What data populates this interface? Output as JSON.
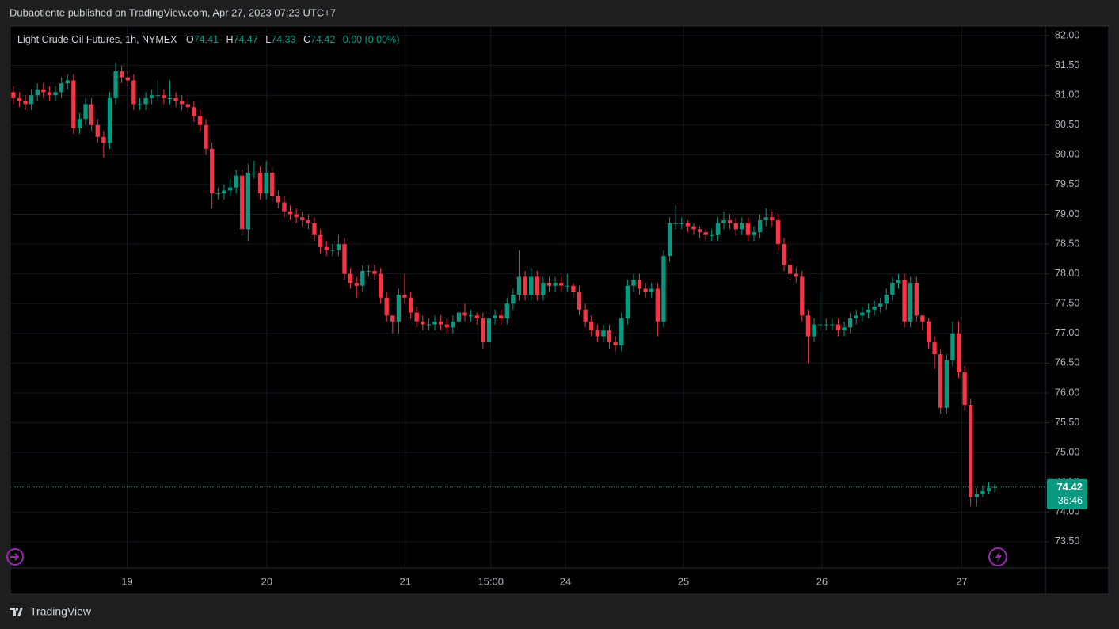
{
  "header": {
    "publisher_line": "Dubaotiente published on TradingView.com, Apr 27, 2023 07:23 UTC+7"
  },
  "chart_data": {
    "type": "candlestick",
    "title": "Light Crude Oil Futures, 1h, NYMEX",
    "ohlc_labels": [
      "O",
      "H",
      "L",
      "C"
    ],
    "change": "0.00 (0.00%)",
    "countdown": "36:46",
    "up_color": "#089981",
    "down_color": "#f23645",
    "grid": true,
    "open": [
      81.05,
      80.95,
      80.9,
      80.85,
      81.0,
      81.1,
      81.05,
      81.0,
      81.05,
      81.2,
      81.25,
      80.45,
      80.6,
      80.85,
      80.5,
      80.3,
      80.2,
      80.95,
      81.4,
      81.3,
      81.25,
      80.85,
      80.85,
      80.95,
      81.0,
      81.0,
      80.95,
      80.95,
      80.9,
      80.85,
      80.8,
      80.65,
      80.5,
      80.1,
      79.35,
      79.35,
      79.4,
      79.45,
      79.65,
      78.75,
      79.7,
      79.7,
      79.35,
      79.7,
      79.3,
      79.2,
      79.05,
      79.0,
      78.95,
      78.9,
      78.85,
      78.65,
      78.45,
      78.4,
      78.4,
      78.5,
      78.0,
      77.85,
      77.8,
      78.05,
      78.05,
      78.0,
      77.6,
      77.3,
      77.2,
      77.65,
      77.6,
      77.35,
      77.2,
      77.15,
      77.15,
      77.2,
      77.15,
      77.1,
      77.2,
      77.35,
      77.3,
      77.3,
      77.25,
      76.85,
      77.25,
      77.3,
      77.25,
      77.5,
      77.65,
      77.95,
      77.65,
      77.95,
      77.65,
      77.85,
      77.8,
      77.85,
      77.8,
      77.8,
      77.7,
      77.4,
      77.2,
      77.05,
      76.95,
      77.05,
      76.85,
      76.8,
      77.25,
      77.8,
      77.9,
      77.75,
      77.7,
      77.75,
      77.2,
      78.3,
      78.85,
      78.85,
      78.85,
      78.8,
      78.75,
      78.7,
      78.65,
      78.65,
      78.85,
      78.9,
      78.85,
      78.75,
      78.85,
      78.65,
      78.7,
      78.9,
      78.95,
      78.9,
      78.5,
      78.15,
      78.0,
      77.95,
      77.3,
      76.95,
      77.15,
      77.15,
      77.15,
      77.15,
      77.05,
      77.1,
      77.25,
      77.3,
      77.35,
      77.4,
      77.45,
      77.5,
      77.65,
      77.85,
      77.9,
      77.2,
      77.85,
      77.3,
      77.2,
      76.85,
      76.65,
      75.75,
      76.55,
      77.0,
      76.35,
      75.8,
      74.25,
      74.3,
      74.35,
      74.41
    ],
    "high": [
      81.15,
      81.05,
      81.0,
      81.1,
      81.2,
      81.2,
      81.15,
      81.15,
      81.3,
      81.35,
      81.35,
      80.7,
      80.95,
      80.95,
      80.6,
      80.4,
      81.05,
      81.55,
      81.5,
      81.4,
      81.35,
      80.95,
      81.05,
      81.1,
      81.25,
      81.1,
      81.25,
      81.05,
      81.0,
      80.95,
      80.9,
      80.75,
      80.6,
      80.2,
      79.45,
      79.5,
      79.6,
      79.75,
      79.75,
      79.85,
      79.9,
      79.8,
      79.9,
      79.8,
      79.4,
      79.3,
      79.15,
      79.1,
      79.05,
      79.0,
      78.95,
      78.75,
      78.55,
      78.5,
      78.65,
      78.6,
      78.1,
      77.95,
      78.15,
      78.15,
      78.15,
      78.1,
      77.7,
      77.3,
      77.75,
      78.0,
      77.7,
      77.45,
      77.3,
      77.25,
      77.3,
      77.3,
      77.25,
      77.3,
      77.45,
      77.5,
      77.4,
      77.35,
      77.35,
      77.35,
      77.4,
      77.4,
      77.6,
      77.75,
      78.4,
      78.05,
      78.1,
      78.05,
      77.95,
      77.95,
      77.95,
      77.95,
      78.0,
      77.85,
      77.8,
      77.5,
      77.3,
      77.15,
      77.15,
      77.15,
      76.95,
      77.35,
      77.9,
      78.0,
      78.0,
      77.85,
      77.85,
      77.85,
      78.4,
      78.95,
      79.15,
      78.95,
      78.9,
      78.85,
      78.8,
      78.75,
      78.75,
      78.95,
      79.05,
      79.0,
      78.95,
      78.95,
      78.95,
      78.8,
      79.0,
      79.1,
      79.05,
      79.0,
      78.6,
      78.25,
      78.1,
      78.05,
      77.4,
      77.25,
      77.7,
      77.25,
      77.25,
      77.25,
      77.2,
      77.35,
      77.4,
      77.45,
      77.5,
      77.55,
      77.6,
      77.75,
      77.95,
      78.0,
      78.0,
      77.95,
      77.95,
      77.3,
      77.25,
      76.95,
      76.75,
      76.65,
      77.2,
      77.2,
      76.45,
      75.9,
      74.4,
      74.45,
      74.5,
      74.47
    ],
    "low": [
      80.85,
      80.8,
      80.75,
      80.75,
      80.9,
      80.95,
      80.9,
      80.9,
      80.95,
      81.1,
      80.35,
      80.35,
      80.5,
      80.4,
      80.2,
      79.95,
      80.1,
      80.85,
      81.2,
      81.15,
      80.75,
      80.75,
      80.75,
      80.85,
      80.9,
      80.85,
      80.85,
      80.8,
      80.75,
      80.7,
      80.55,
      80.4,
      80.0,
      79.1,
      79.25,
      79.25,
      79.3,
      79.35,
      78.65,
      78.55,
      79.6,
      79.25,
      79.25,
      79.2,
      79.1,
      78.95,
      78.9,
      78.85,
      78.8,
      78.75,
      78.55,
      78.35,
      78.3,
      78.3,
      78.3,
      77.9,
      77.75,
      77.6,
      77.7,
      77.95,
      77.9,
      77.5,
      77.2,
      77.0,
      77.0,
      77.5,
      77.25,
      77.1,
      77.05,
      77.05,
      77.05,
      77.05,
      77.0,
      77.0,
      77.1,
      77.2,
      77.2,
      77.15,
      76.75,
      76.75,
      77.15,
      77.15,
      77.15,
      77.4,
      77.55,
      77.55,
      77.55,
      77.55,
      77.55,
      77.7,
      77.7,
      77.7,
      77.7,
      77.6,
      77.3,
      77.1,
      76.95,
      76.85,
      76.85,
      76.75,
      76.7,
      76.7,
      77.15,
      77.7,
      77.65,
      77.6,
      77.6,
      76.95,
      77.1,
      78.2,
      78.75,
      78.75,
      78.7,
      78.65,
      78.6,
      78.55,
      78.55,
      78.55,
      78.75,
      78.75,
      78.65,
      78.65,
      78.55,
      78.55,
      78.6,
      78.8,
      78.8,
      78.4,
      78.05,
      77.9,
      77.85,
      77.2,
      76.5,
      76.85,
      77.05,
      77.05,
      77.05,
      76.95,
      76.95,
      77.0,
      77.15,
      77.2,
      77.25,
      77.3,
      77.35,
      77.4,
      77.55,
      77.75,
      77.1,
      77.1,
      77.2,
      77.05,
      76.75,
      76.4,
      75.65,
      75.65,
      76.45,
      76.25,
      75.7,
      74.1,
      74.1,
      74.25,
      74.3,
      74.33
    ],
    "close": [
      80.95,
      80.9,
      80.85,
      81.0,
      81.1,
      81.05,
      81.0,
      81.05,
      81.2,
      81.25,
      80.45,
      80.6,
      80.85,
      80.5,
      80.3,
      80.2,
      80.95,
      81.4,
      81.3,
      81.25,
      80.85,
      80.85,
      80.95,
      81.0,
      81.0,
      80.95,
      80.95,
      80.9,
      80.85,
      80.8,
      80.65,
      80.5,
      80.1,
      79.35,
      79.35,
      79.4,
      79.45,
      79.65,
      78.75,
      79.7,
      79.7,
      79.35,
      79.7,
      79.3,
      79.2,
      79.05,
      79.0,
      78.95,
      78.9,
      78.85,
      78.65,
      78.45,
      78.4,
      78.4,
      78.5,
      78.0,
      77.85,
      77.8,
      78.05,
      78.05,
      78.0,
      77.6,
      77.3,
      77.2,
      77.65,
      77.6,
      77.35,
      77.2,
      77.15,
      77.15,
      77.2,
      77.15,
      77.1,
      77.2,
      77.35,
      77.3,
      77.3,
      77.25,
      76.85,
      77.25,
      77.3,
      77.25,
      77.5,
      77.65,
      77.95,
      77.65,
      77.95,
      77.65,
      77.85,
      77.8,
      77.85,
      77.8,
      77.8,
      77.7,
      77.4,
      77.2,
      77.05,
      76.95,
      77.05,
      76.85,
      76.8,
      77.25,
      77.8,
      77.9,
      77.75,
      77.7,
      77.75,
      77.2,
      78.3,
      78.85,
      78.85,
      78.85,
      78.8,
      78.75,
      78.7,
      78.65,
      78.65,
      78.85,
      78.9,
      78.85,
      78.75,
      78.85,
      78.65,
      78.7,
      78.9,
      78.95,
      78.9,
      78.5,
      78.15,
      78.0,
      77.95,
      77.3,
      76.95,
      77.15,
      77.15,
      77.15,
      77.15,
      77.05,
      77.1,
      77.25,
      77.3,
      77.35,
      77.4,
      77.45,
      77.5,
      77.65,
      77.85,
      77.9,
      77.2,
      77.85,
      77.3,
      77.2,
      76.85,
      76.65,
      75.75,
      76.55,
      77.0,
      76.35,
      75.8,
      74.25,
      74.3,
      74.35,
      74.4,
      74.42
    ],
    "xlim": [
      -0.5,
      171.4
    ],
    "ylim": [
      73.06,
      82.16
    ],
    "xticks": [
      {
        "value": 18.9,
        "label": "19"
      },
      {
        "value": 42.1,
        "label": "20"
      },
      {
        "value": 65.1,
        "label": "21"
      },
      {
        "value": 79.3,
        "label": "15:00"
      },
      {
        "value": 91.7,
        "label": "24"
      },
      {
        "value": 111.3,
        "label": "25"
      },
      {
        "value": 134.3,
        "label": "26"
      },
      {
        "value": 157.5,
        "label": "27"
      }
    ],
    "yticks": [
      {
        "value": 73.5,
        "label": "73.50"
      },
      {
        "value": 74,
        "label": "74.00"
      },
      {
        "value": 74.5,
        "label": "74.50"
      },
      {
        "value": 75,
        "label": "75.00"
      },
      {
        "value": 75.5,
        "label": "75.50"
      },
      {
        "value": 76,
        "label": "76.00"
      },
      {
        "value": 76.5,
        "label": "76.50"
      },
      {
        "value": 77,
        "label": "77.00"
      },
      {
        "value": 77.5,
        "label": "77.50"
      },
      {
        "value": 78,
        "label": "78.00"
      },
      {
        "value": 78.5,
        "label": "78.50"
      },
      {
        "value": 79,
        "label": "79.00"
      },
      {
        "value": 79.5,
        "label": "79.50"
      },
      {
        "value": 80,
        "label": "80.00"
      },
      {
        "value": 80.5,
        "label": "80.50"
      },
      {
        "value": 81,
        "label": "81.00"
      },
      {
        "value": 81.5,
        "label": "81.50"
      },
      {
        "value": 82,
        "label": "82.00"
      }
    ]
  },
  "footer": {
    "brand": "TradingView"
  }
}
